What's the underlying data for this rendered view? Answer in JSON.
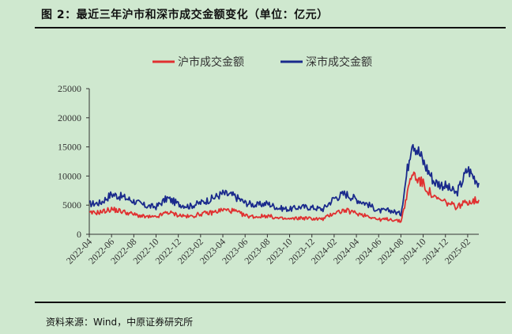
{
  "title": "图 2：最近三年沪市和深市成交金额变化（单位：亿元）",
  "source": "资料来源：Wind，中原证券研究所",
  "chart_data": {
    "type": "line",
    "legend_position": "top",
    "grid": false,
    "ylim": [
      0,
      25000
    ],
    "yticks": [
      0,
      5000,
      10000,
      15000,
      20000,
      25000
    ],
    "xticks": [
      "2022-04",
      "2022-06",
      "2022-08",
      "2022-10",
      "2022-12",
      "2023-02",
      "2023-04",
      "2023-06",
      "2023-08",
      "2023-10",
      "2023-12",
      "2024-02",
      "2024-04",
      "2024-06",
      "2024-08",
      "2024-10",
      "2024-12",
      "2025-02"
    ],
    "x": [
      "2022-04",
      "2022-05",
      "2022-06",
      "2022-07",
      "2022-08",
      "2022-09",
      "2022-10",
      "2022-11",
      "2022-12",
      "2023-01",
      "2023-02",
      "2023-03",
      "2023-04",
      "2023-05",
      "2023-06",
      "2023-07",
      "2023-08",
      "2023-09",
      "2023-10",
      "2023-11",
      "2023-12",
      "2024-01",
      "2024-02",
      "2024-03",
      "2024-04",
      "2024-05",
      "2024-06",
      "2024-07",
      "2024-08",
      "2024-09",
      "2024-10",
      "2024-11",
      "2024-12",
      "2025-01",
      "2025-02",
      "2025-03"
    ],
    "series": [
      {
        "name": "沪市成交金额",
        "color": "#e03030",
        "values": [
          3600,
          3800,
          4300,
          3900,
          3400,
          3000,
          2900,
          3800,
          3300,
          3000,
          3500,
          3700,
          4200,
          4000,
          3200,
          3000,
          3200,
          2700,
          2600,
          2800,
          2700,
          2600,
          3700,
          4100,
          3600,
          3200,
          2500,
          2600,
          2200,
          10500,
          8600,
          6200,
          5500,
          4700,
          5600,
          5900
        ]
      },
      {
        "name": "深市成交金额",
        "color": "#1a2a8c",
        "values": [
          5200,
          5400,
          6900,
          6400,
          5700,
          4900,
          4700,
          6200,
          5200,
          4800,
          5400,
          6100,
          7000,
          6600,
          5400,
          5000,
          5300,
          4500,
          4300,
          4700,
          4600,
          4300,
          6200,
          7000,
          6000,
          5200,
          4000,
          4100,
          3500,
          16500,
          12500,
          9000,
          8300,
          7000,
          11200,
          8800
        ]
      }
    ]
  }
}
